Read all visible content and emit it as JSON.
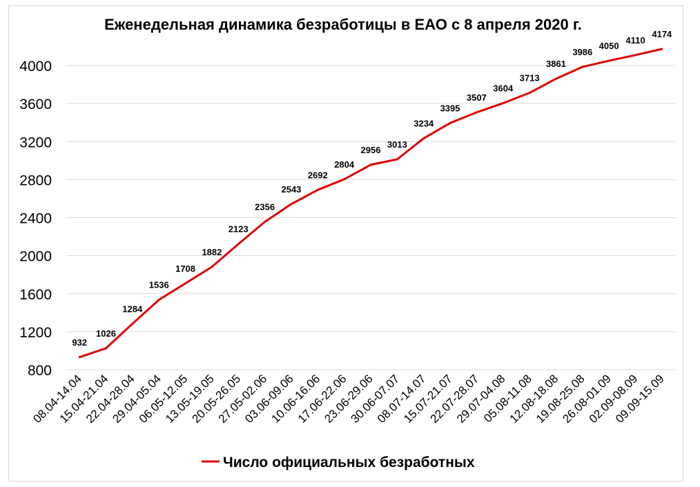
{
  "chart_data": {
    "type": "line",
    "title": "Еженедельная динамика безработицы в ЕАО с 8 апреля 2020 г.",
    "xlabel": "",
    "ylabel": "",
    "ylim": [
      800,
      4000
    ],
    "yticks": [
      800,
      1200,
      1600,
      2000,
      2400,
      2800,
      3200,
      3600,
      4000
    ],
    "grid": true,
    "legend_position": "bottom",
    "categories": [
      "08.04-14.04",
      "15.04-21.04",
      "22.04-28.04",
      "29.04-05.04",
      "06.05-12.05",
      "13.05-19.05",
      "20.05-26.05",
      "27.05-02.06",
      "03.06-09.06",
      "10.06-16.06",
      "17.06-22.06",
      "23.06-29.06",
      "30.06-07.07",
      "08.07-14.07",
      "15.07-21.07",
      "22.07-28.07",
      "29.07-04.08",
      "05.08-11.08",
      "12.08-18.08",
      "19.08-25.08",
      "26.08-01.09",
      "02.09-08.09",
      "09.09-15.09"
    ],
    "series": [
      {
        "name": "Число официальных безработных",
        "color": "#e00000",
        "values": [
          932,
          1026,
          1284,
          1536,
          1708,
          1882,
          2123,
          2356,
          2543,
          2692,
          2804,
          2956,
          3013,
          3234,
          3395,
          3507,
          3604,
          3713,
          3861,
          3986,
          4050,
          4110,
          4174
        ]
      }
    ]
  }
}
